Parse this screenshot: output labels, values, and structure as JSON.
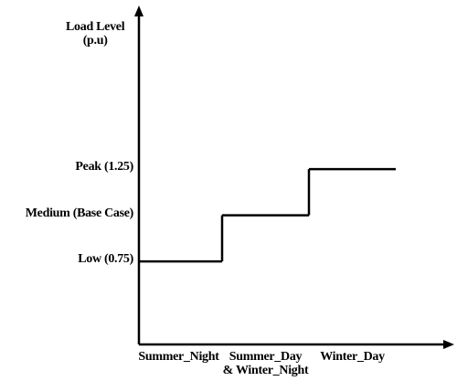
{
  "chart_data": {
    "type": "step",
    "y_axis_label": "Load Level\n(p.u)",
    "categories": [
      "Summer_Night",
      "Summer_Day\n& Winter_Night",
      "Winter_Day"
    ],
    "values": [
      0.75,
      1.0,
      1.25
    ],
    "color": "#000000",
    "ylim": [
      0.3,
      2.1
    ],
    "yticks": [
      {
        "value": 0.75,
        "label": "Low (0.75)"
      },
      {
        "value": 1.0,
        "label": "Medium (Base Case)"
      },
      {
        "value": 1.25,
        "label": "Peak (1.25)"
      }
    ],
    "grid": false
  }
}
